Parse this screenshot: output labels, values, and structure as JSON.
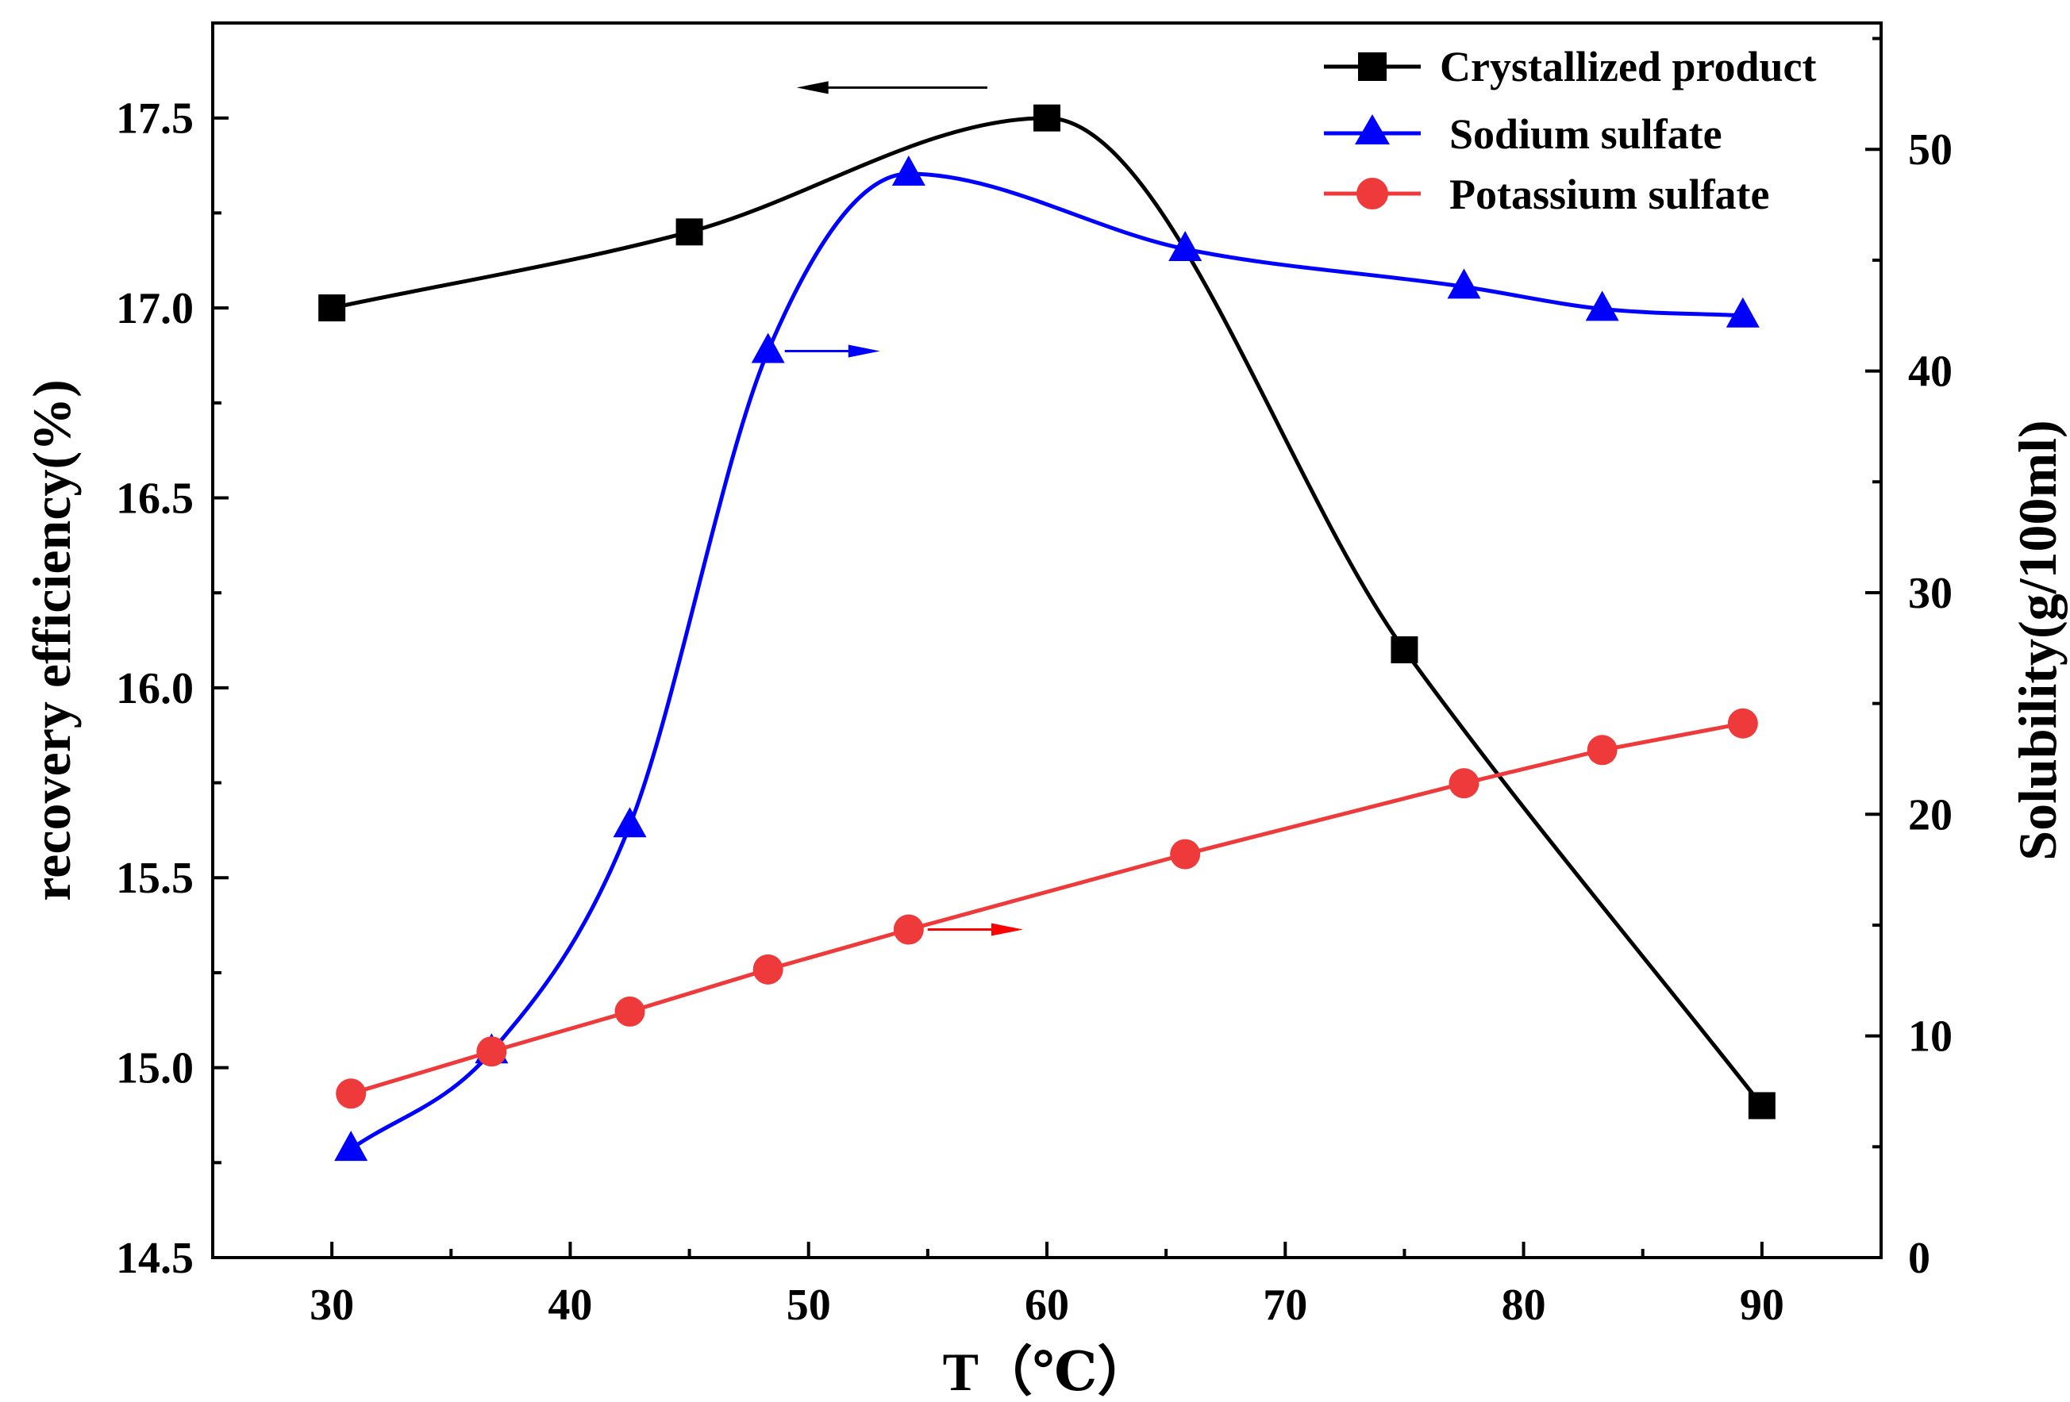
{
  "chart_data": {
    "type": "line",
    "title": "",
    "xlabel": "T（℃）",
    "ylabel_left": "recovery efficiency(%)",
    "ylabel_right": "Solubility(g/100ml)",
    "xlim": [
      25,
      95
    ],
    "ylim_left": [
      14.5,
      17.75
    ],
    "ylim_right": [
      0,
      55.7
    ],
    "x_ticks": [
      "30",
      "40",
      "50",
      "60",
      "70",
      "80",
      "90"
    ],
    "y_left_ticks": [
      "14.5",
      "15.0",
      "15.5",
      "16.0",
      "16.5",
      "17.0",
      "17.5"
    ],
    "y_right_ticks": [
      "0",
      "10",
      "20",
      "30",
      "40",
      "50"
    ],
    "grid": false,
    "legend_position": "top-right",
    "series": [
      {
        "name": "Crystallized product",
        "axis": "left",
        "marker": "square",
        "color": "#000000",
        "x": [
          30,
          45,
          60,
          75,
          90
        ],
        "values": [
          17.0,
          17.2,
          17.5,
          16.1,
          14.9
        ]
      },
      {
        "name": "Sodium sulfate",
        "axis": "right",
        "marker": "triangle",
        "color": "#0000ff",
        "x": [
          30.8,
          36.7,
          42.5,
          48.3,
          54.2,
          65.8,
          77.5,
          83.3,
          89.2
        ],
        "values": [
          4.9,
          9.3,
          19.5,
          40.9,
          48.9,
          45.5,
          43.8,
          42.8,
          42.5
        ]
      },
      {
        "name": "Potassium sulfate",
        "axis": "right",
        "marker": "circle",
        "color": "#ee3a3a",
        "x": [
          30.8,
          36.7,
          42.5,
          48.3,
          54.2,
          65.8,
          77.5,
          83.3,
          89.2
        ],
        "values": [
          7.4,
          9.3,
          11.1,
          13.0,
          14.8,
          18.2,
          21.4,
          22.9,
          24.1
        ]
      }
    ],
    "annotations": [
      {
        "type": "arrow",
        "direction": "left",
        "axis": "left",
        "color": "#000000",
        "x_from": 57.5,
        "x_to": 49.5,
        "y": 17.58
      },
      {
        "type": "arrow",
        "direction": "right",
        "axis": "right",
        "color": "#0000ff",
        "x_from": 49.0,
        "x_to": 53.0,
        "y": 40.9
      },
      {
        "type": "arrow",
        "direction": "right",
        "axis": "right",
        "color": "#ff0000",
        "x_from": 55.0,
        "x_to": 59.0,
        "y": 14.8
      }
    ]
  }
}
